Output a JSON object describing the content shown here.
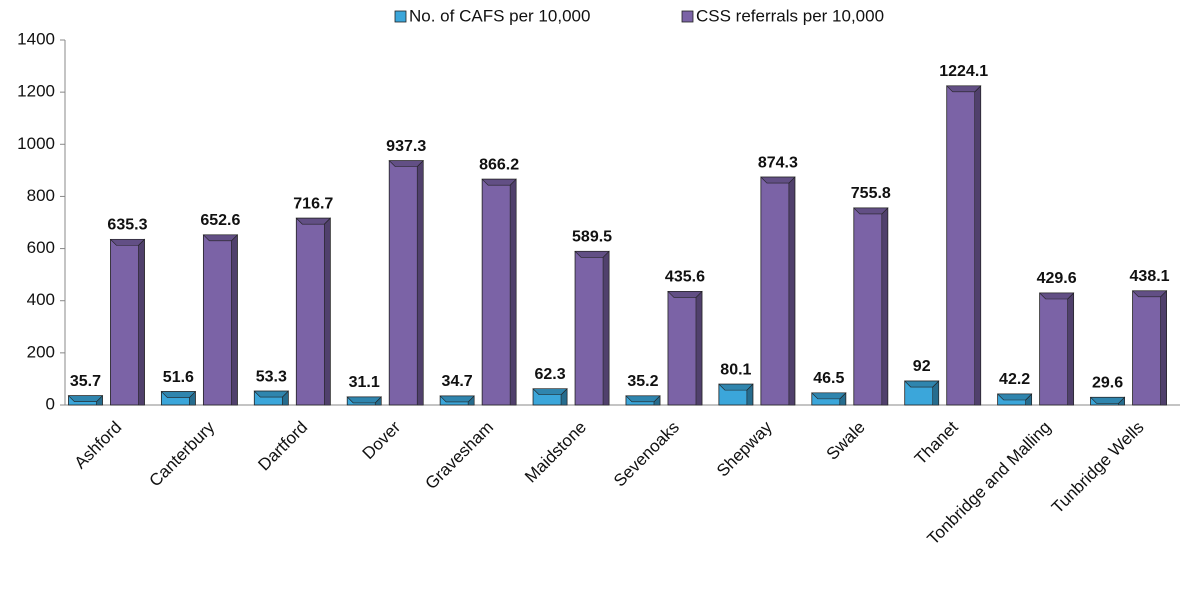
{
  "chart_data": {
    "type": "bar",
    "categories": [
      "Ashford",
      "Canterbury",
      "Dartford",
      "Dover",
      "Gravesham",
      "Maidstone",
      "Sevenoaks",
      "Shepway",
      "Swale",
      "Thanet",
      "Tonbridge and Malling",
      "Tunbridge Wells"
    ],
    "series": [
      {
        "name": "No. of CAFS per 10,000",
        "color": "#3ba6da",
        "values": [
          35.7,
          51.6,
          53.3,
          31.1,
          34.7,
          62.3,
          35.2,
          80.1,
          46.5,
          92,
          42.2,
          29.6
        ]
      },
      {
        "name": "CSS referrals per 10,000",
        "color": "#7b63a6",
        "values": [
          635.3,
          652.6,
          716.7,
          937.3,
          866.2,
          589.5,
          435.6,
          874.3,
          755.8,
          1224.1,
          429.6,
          438.1
        ]
      }
    ],
    "ylim": [
      0,
      1400
    ],
    "yticks": [
      0,
      200,
      400,
      600,
      800,
      1000,
      1200,
      1400
    ],
    "legend": "top",
    "grid": false
  }
}
